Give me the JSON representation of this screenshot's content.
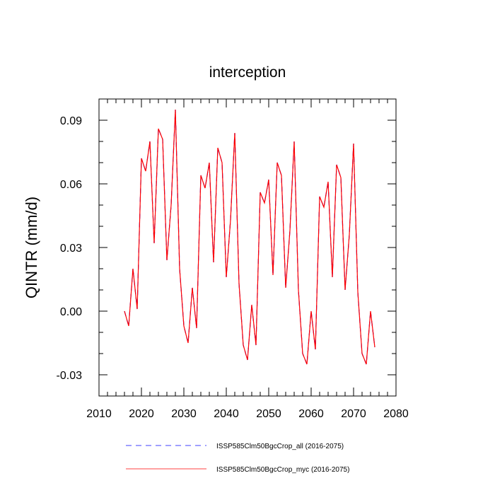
{
  "chart_data": {
    "type": "line",
    "title": "interception",
    "xlabel": "",
    "ylabel": "QINTR  (mm/d)",
    "xlim": [
      2010,
      2080
    ],
    "ylim": [
      -0.04,
      0.1
    ],
    "x_ticks": [
      2010,
      2020,
      2030,
      2040,
      2050,
      2060,
      2070,
      2080
    ],
    "x_tick_labels": [
      "2010",
      "2020",
      "2030",
      "2040",
      "2050",
      "2060",
      "2070",
      "2080"
    ],
    "y_ticks": [
      -0.03,
      0.0,
      0.03,
      0.06,
      0.09
    ],
    "y_tick_labels": [
      "-0.03",
      "0.00",
      "0.03",
      "0.06",
      "0.09"
    ],
    "grid": false,
    "legend_position": "bottom",
    "x": [
      2016,
      2017,
      2018,
      2019,
      2020,
      2021,
      2022,
      2023,
      2024,
      2025,
      2026,
      2027,
      2028,
      2029,
      2030,
      2031,
      2032,
      2033,
      2034,
      2035,
      2036,
      2037,
      2038,
      2039,
      2040,
      2041,
      2042,
      2043,
      2044,
      2045,
      2046,
      2047,
      2048,
      2049,
      2050,
      2051,
      2052,
      2053,
      2054,
      2055,
      2056,
      2057,
      2058,
      2059,
      2060,
      2061,
      2062,
      2063,
      2064,
      2065,
      2066,
      2067,
      2068,
      2069,
      2070,
      2071,
      2072,
      2073,
      2074,
      2075
    ],
    "series": [
      {
        "name": "ISSP585Clm50BgcCrop_all (2016-2075)",
        "color": "#0000ff",
        "dash": "dashed",
        "values": [
          0.0,
          -0.007,
          0.02,
          0.001,
          0.072,
          0.066,
          0.08,
          0.032,
          0.086,
          0.081,
          0.024,
          0.05,
          0.095,
          0.02,
          -0.007,
          -0.015,
          0.011,
          -0.008,
          0.064,
          0.058,
          0.07,
          0.023,
          0.077,
          0.07,
          0.016,
          0.043,
          0.084,
          0.013,
          -0.016,
          -0.023,
          0.003,
          -0.016,
          0.056,
          0.051,
          0.062,
          0.017,
          0.07,
          0.064,
          0.011,
          0.038,
          0.08,
          0.01,
          -0.02,
          -0.025,
          0.0,
          -0.018,
          0.054,
          0.049,
          0.061,
          0.016,
          0.069,
          0.063,
          0.01,
          0.036,
          0.079,
          0.009,
          -0.02,
          -0.025,
          0.0,
          -0.017
        ]
      },
      {
        "name": "ISSP585Clm50BgcCrop_myc (2016-2075)",
        "color": "#ff0000",
        "dash": "solid",
        "values": [
          0.0,
          -0.007,
          0.02,
          0.001,
          0.072,
          0.066,
          0.08,
          0.032,
          0.086,
          0.081,
          0.024,
          0.05,
          0.095,
          0.02,
          -0.007,
          -0.015,
          0.011,
          -0.008,
          0.064,
          0.058,
          0.07,
          0.023,
          0.077,
          0.07,
          0.016,
          0.043,
          0.084,
          0.013,
          -0.016,
          -0.023,
          0.003,
          -0.016,
          0.056,
          0.051,
          0.062,
          0.017,
          0.07,
          0.064,
          0.011,
          0.038,
          0.08,
          0.01,
          -0.02,
          -0.025,
          0.0,
          -0.018,
          0.054,
          0.049,
          0.061,
          0.016,
          0.069,
          0.063,
          0.01,
          0.036,
          0.079,
          0.009,
          -0.02,
          -0.025,
          0.0,
          -0.017
        ]
      }
    ]
  }
}
